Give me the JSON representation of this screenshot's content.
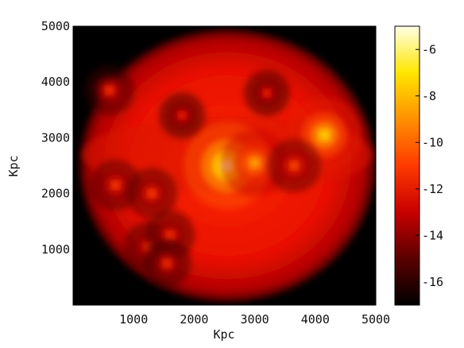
{
  "chart_data": {
    "type": "heatmap",
    "title": "",
    "xlabel": "Kpc",
    "ylabel": "Kpc",
    "xlim": [
      0,
      5000
    ],
    "ylim": [
      0,
      5000
    ],
    "xticks": [
      1000,
      2000,
      3000,
      4000,
      5000
    ],
    "yticks": [
      1000,
      2000,
      3000,
      4000,
      5000
    ],
    "grid": false,
    "legend": "none",
    "colorbar": {
      "placement": "right",
      "range": [
        -17,
        -5
      ],
      "ticks": [
        -6,
        -8,
        -10,
        -12,
        -14,
        -16
      ],
      "colormap": [
        "#000000",
        "#5a0000",
        "#c80000",
        "#ff3a00",
        "#ff9000",
        "#ffe600",
        "#ffffe6"
      ]
    },
    "map": {
      "disk_center": [
        2550,
        2500
      ],
      "disk_radius_kpc": 2450,
      "background_level": -16.8,
      "halo_level": -13.5,
      "clumps": [
        {
          "x": 2550,
          "y": 2500,
          "peak": -5.8
        },
        {
          "x": 4150,
          "y": 3050,
          "peak": -7.5
        },
        {
          "x": 3000,
          "y": 2550,
          "peak": -8.5
        },
        {
          "x": 3650,
          "y": 2500,
          "peak": -10.5
        },
        {
          "x": 700,
          "y": 2150,
          "peak": -10.8
        },
        {
          "x": 1300,
          "y": 2000,
          "peak": -10.8
        },
        {
          "x": 1250,
          "y": 1050,
          "peak": -11.0
        },
        {
          "x": 1600,
          "y": 1250,
          "peak": -11.0
        },
        {
          "x": 1550,
          "y": 750,
          "peak": -11.2
        },
        {
          "x": 600,
          "y": 3850,
          "peak": -11.0
        },
        {
          "x": 3200,
          "y": 3800,
          "peak": -11.5
        },
        {
          "x": 1800,
          "y": 3400,
          "peak": -11.5
        }
      ]
    }
  }
}
